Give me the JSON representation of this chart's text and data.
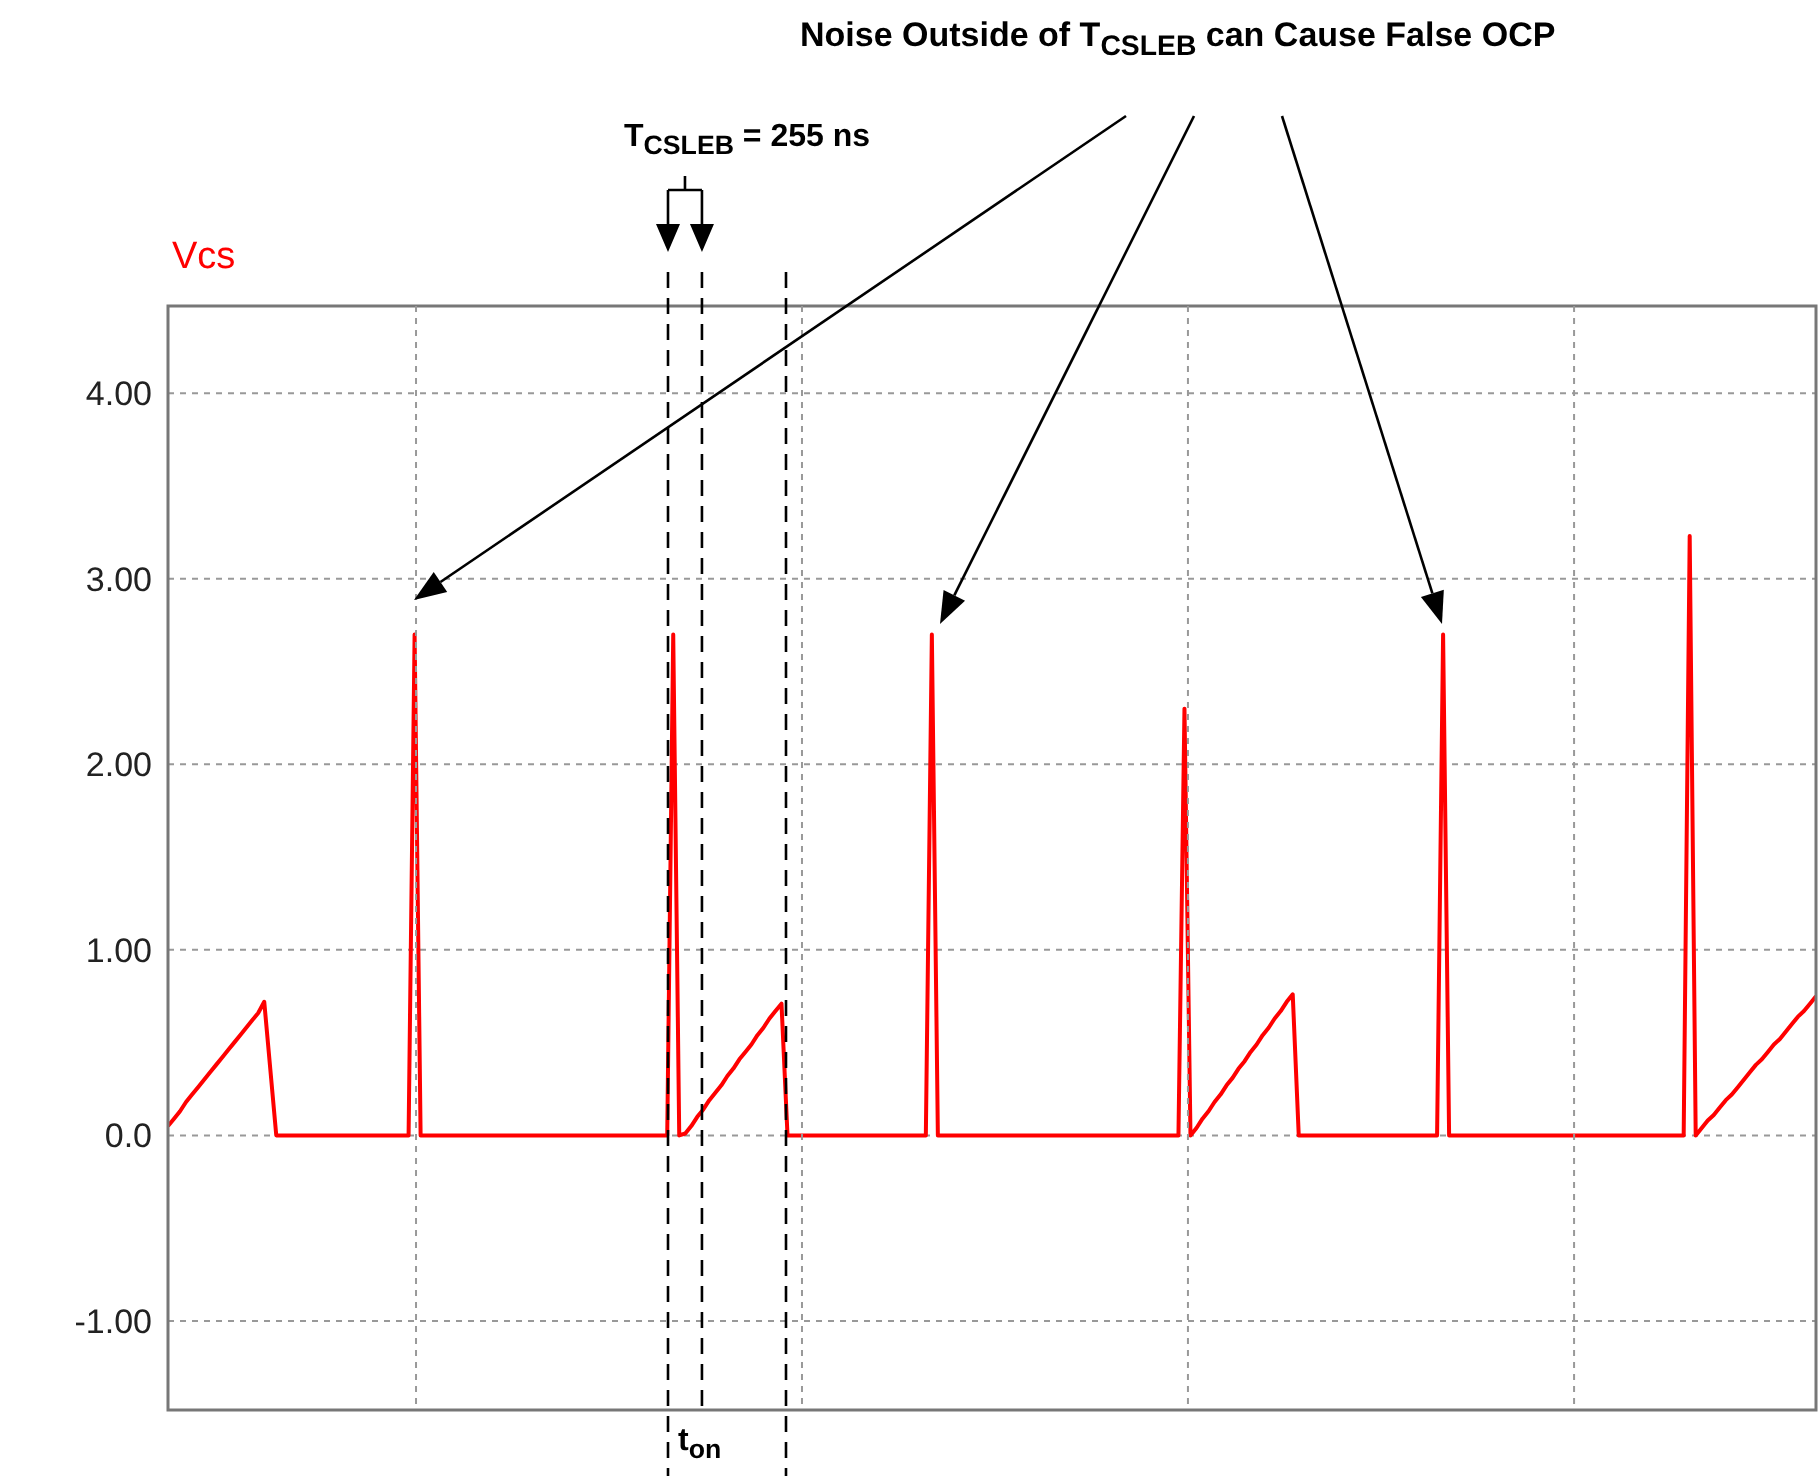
{
  "chart_data": {
    "type": "line",
    "title": "Noise Outside of T$_{CSLEB}$ can Cause False OCP",
    "ylabel": "Vcs",
    "annotations": [
      "T$_{CSLEB}$ = 255 ns",
      "t$_{on}$"
    ],
    "categories": [
      null,
      null,
      null,
      null,
      null,
      null,
      null,
      null,
      null,
      null,
      null,
      null,
      null,
      null,
      null,
      null,
      null,
      null,
      null,
      null,
      null,
      null,
      null,
      null,
      null,
      null,
      null,
      null,
      null,
      null,
      null,
      null,
      null,
      null,
      null,
      null,
      null,
      null,
      null,
      null,
      null,
      null,
      null,
      null,
      null,
      null,
      null,
      null,
      null,
      null,
      null,
      null,
      null,
      null,
      null,
      null,
      null,
      null,
      null,
      null,
      null,
      null,
      null,
      null,
      null,
      null,
      null,
      null,
      null,
      null,
      null,
      null,
      null,
      null,
      null,
      null,
      null,
      null,
      null,
      null,
      null,
      null,
      null,
      null,
      null,
      null,
      null,
      null,
      null,
      null,
      null,
      null,
      null,
      null,
      null,
      null,
      null,
      null,
      null,
      null,
      null,
      null,
      null,
      null,
      null,
      null,
      null,
      null,
      null,
      null,
      null,
      null,
      null,
      null,
      null,
      null,
      null,
      null,
      null,
      null,
      null,
      null,
      null,
      null,
      null,
      null,
      null,
      null,
      null,
      null,
      null,
      null,
      null,
      null,
      null,
      null,
      null,
      null,
      null,
      null,
      null,
      null,
      null,
      null,
      null,
      null,
      null,
      null,
      null,
      null,
      null,
      null,
      null,
      null,
      null,
      null,
      null,
      null,
      null,
      null,
      null,
      null,
      null,
      null,
      null,
      null,
      null,
      null,
      null,
      null,
      null,
      null,
      null,
      null,
      null,
      null,
      null,
      null,
      null,
      null,
      null,
      null,
      null,
      null,
      null,
      null,
      null,
      null,
      null,
      null,
      null,
      null,
      null,
      null,
      null,
      null,
      null,
      null,
      null,
      null,
      null,
      null,
      null,
      null,
      null,
      null,
      null,
      null,
      null,
      null,
      null,
      null,
      null,
      null,
      null,
      null,
      null,
      null,
      null,
      null,
      null,
      null,
      null,
      null,
      null,
      null,
      null,
      null,
      null,
      null,
      null,
      null,
      null,
      null,
      null,
      null,
      null,
      null,
      null,
      null,
      null,
      null,
      null,
      null,
      null,
      null,
      null,
      null,
      null,
      null,
      null,
      null,
      null,
      null,
      null,
      null,
      null,
      null,
      null,
      null,
      null,
      null,
      null,
      null,
      null,
      null,
      null,
      null,
      null,
      null,
      null,
      null,
      null,
      null,
      null
    ],
    "ylim": [
      -1.48,
      4.47
    ],
    "yticks": [
      {
        "value": -1,
        "label": "-1.00"
      },
      {
        "value": 0,
        "label": "0.0"
      },
      {
        "value": 1,
        "label": "1.00"
      },
      {
        "value": 2,
        "label": "2.00"
      },
      {
        "value": 3,
        "label": "3.00"
      },
      {
        "value": 4,
        "label": "4.00"
      }
    ],
    "tick_labels": "y",
    "grid": true,
    "marker": "none",
    "line_style": "solid",
    "series": [
      {
        "color": "#ff0000",
        "values": [
          0.05,
          0.09,
          0.13,
          0.18,
          0.22,
          0.26,
          0.3,
          0.34,
          0.38,
          0.42,
          0.46,
          0.5,
          0.54,
          0.58,
          0.62,
          0.66,
          0.72,
          0.36,
          0,
          0,
          0,
          0,
          0,
          0,
          0,
          0,
          0,
          0,
          0,
          0,
          0,
          0,
          0,
          0,
          0,
          0,
          0,
          0,
          0,
          0,
          0,
          2.7,
          0,
          0,
          0,
          0,
          0,
          0,
          0,
          0,
          0,
          0,
          0,
          0,
          0,
          0,
          0,
          0,
          0,
          0,
          0,
          0,
          0,
          0,
          0,
          0,
          0,
          0,
          0,
          0,
          0,
          0,
          0,
          0,
          0,
          0,
          0,
          0,
          0,
          0,
          0,
          0,
          0,
          0,
          2.7,
          0,
          0.01,
          0.05,
          0.1,
          0.14,
          0.19,
          0.23,
          0.27,
          0.32,
          0.36,
          0.41,
          0.45,
          0.49,
          0.54,
          0.58,
          0.63,
          0.67,
          0.71,
          0,
          0,
          0,
          0,
          0,
          0,
          0,
          0,
          0,
          0,
          0,
          0,
          0,
          0,
          0,
          0,
          0,
          0,
          0,
          0,
          0,
          0,
          0,
          0,
          2.7,
          0,
          0,
          0,
          0,
          0,
          0,
          0,
          0,
          0,
          0,
          0,
          0,
          0,
          0,
          0,
          0,
          0,
          0,
          0,
          0,
          0,
          0,
          0,
          0,
          0,
          0,
          0,
          0,
          0,
          0,
          0,
          0,
          0,
          0,
          0,
          0,
          0,
          0,
          0,
          0,
          0,
          2.3,
          0,
          0.04,
          0.09,
          0.13,
          0.18,
          0.22,
          0.27,
          0.31,
          0.36,
          0.4,
          0.45,
          0.49,
          0.54,
          0.58,
          0.63,
          0.67,
          0.72,
          0.76,
          0,
          0,
          0,
          0,
          0,
          0,
          0,
          0,
          0,
          0,
          0,
          0,
          0,
          0,
          0,
          0,
          0,
          0,
          0,
          0,
          0,
          0,
          0,
          0,
          2.7,
          0,
          0,
          0,
          0,
          0,
          0,
          0,
          0,
          0,
          0,
          0,
          0,
          0,
          0,
          0,
          0,
          0,
          0,
          0,
          0,
          0,
          0,
          0,
          0,
          0,
          0,
          0,
          0,
          0,
          0,
          0,
          0,
          0,
          0,
          0,
          0,
          0,
          0,
          0,
          0,
          3.23,
          0,
          0.04,
          0.08,
          0.11,
          0.15,
          0.19,
          0.22,
          0.26,
          0.3,
          0.34,
          0.38,
          0.41,
          0.45,
          0.49,
          0.52,
          0.56,
          0.6,
          0.64,
          0.67,
          0.71,
          0.75
        ]
      }
    ]
  }
}
